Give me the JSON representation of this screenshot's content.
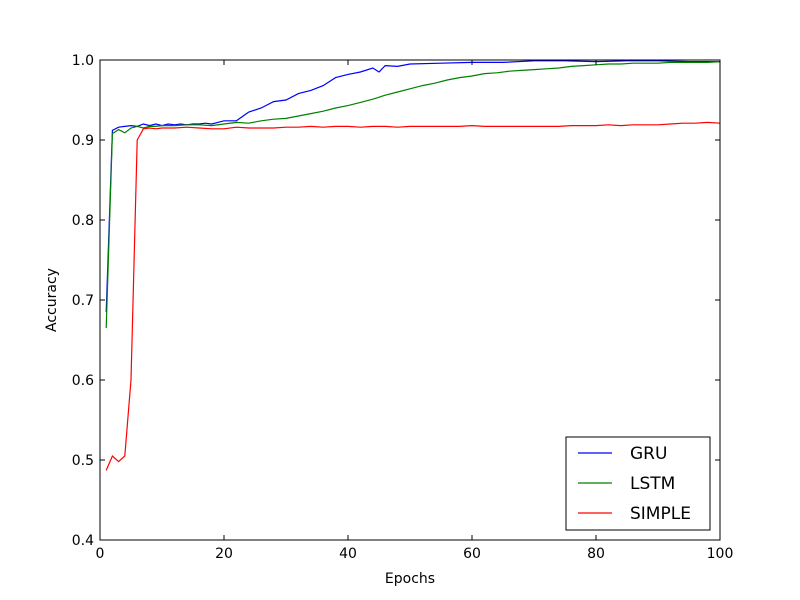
{
  "chart_data": {
    "type": "line",
    "title": "",
    "xlabel": "Epochs",
    "ylabel": "Accuracy",
    "xlim": [
      0,
      100
    ],
    "ylim": [
      0.4,
      1.0
    ],
    "xticks": [
      0,
      20,
      40,
      60,
      80,
      100
    ],
    "yticks": [
      0.4,
      0.5,
      0.6,
      0.7,
      0.8,
      0.9,
      1.0
    ],
    "xtick_labels": [
      "0",
      "20",
      "40",
      "60",
      "80",
      "100"
    ],
    "ytick_labels": [
      "0.4",
      "0.5",
      "0.6",
      "0.7",
      "0.8",
      "0.9",
      "1.0"
    ],
    "grid": false,
    "legend_position": "bottom-right",
    "series": [
      {
        "name": "GRU",
        "color": "#0000ff",
        "x": [
          1,
          2,
          3,
          4,
          5,
          6,
          7,
          8,
          9,
          10,
          11,
          12,
          13,
          14,
          15,
          16,
          17,
          18,
          19,
          20,
          22,
          24,
          26,
          28,
          30,
          32,
          34,
          36,
          38,
          40,
          42,
          44,
          45,
          46,
          48,
          50,
          55,
          60,
          65,
          70,
          75,
          80,
          85,
          90,
          95,
          100
        ],
        "y": [
          0.685,
          0.912,
          0.916,
          0.917,
          0.918,
          0.917,
          0.92,
          0.918,
          0.92,
          0.918,
          0.92,
          0.919,
          0.92,
          0.919,
          0.92,
          0.92,
          0.921,
          0.92,
          0.922,
          0.924,
          0.924,
          0.935,
          0.94,
          0.948,
          0.95,
          0.958,
          0.962,
          0.968,
          0.978,
          0.982,
          0.985,
          0.99,
          0.985,
          0.993,
          0.992,
          0.995,
          0.996,
          0.997,
          0.997,
          0.999,
          0.999,
          0.998,
          0.999,
          0.999,
          0.998,
          0.998
        ]
      },
      {
        "name": "LSTM",
        "color": "#008000",
        "x": [
          1,
          2,
          3,
          4,
          5,
          6,
          7,
          8,
          9,
          10,
          12,
          14,
          16,
          18,
          20,
          22,
          24,
          26,
          28,
          30,
          32,
          34,
          36,
          38,
          40,
          42,
          44,
          46,
          48,
          50,
          52,
          54,
          56,
          58,
          60,
          62,
          64,
          66,
          68,
          70,
          72,
          74,
          76,
          78,
          80,
          82,
          84,
          86,
          88,
          90,
          92,
          94,
          96,
          98,
          100
        ],
        "y": [
          0.665,
          0.908,
          0.913,
          0.909,
          0.915,
          0.917,
          0.915,
          0.917,
          0.917,
          0.918,
          0.918,
          0.919,
          0.919,
          0.918,
          0.92,
          0.922,
          0.921,
          0.924,
          0.926,
          0.927,
          0.93,
          0.933,
          0.936,
          0.94,
          0.943,
          0.947,
          0.951,
          0.956,
          0.96,
          0.964,
          0.968,
          0.971,
          0.975,
          0.978,
          0.98,
          0.983,
          0.984,
          0.986,
          0.987,
          0.988,
          0.989,
          0.99,
          0.992,
          0.993,
          0.994,
          0.995,
          0.995,
          0.996,
          0.996,
          0.996,
          0.997,
          0.997,
          0.997,
          0.997,
          0.998
        ]
      },
      {
        "name": "SIMPLE",
        "color": "#ff0000",
        "x": [
          1,
          2,
          3,
          4,
          5,
          6,
          7,
          8,
          9,
          10,
          12,
          14,
          16,
          18,
          20,
          22,
          24,
          26,
          28,
          30,
          32,
          34,
          36,
          38,
          40,
          42,
          44,
          46,
          48,
          50,
          52,
          54,
          56,
          58,
          60,
          62,
          64,
          66,
          68,
          70,
          72,
          74,
          76,
          78,
          80,
          82,
          84,
          86,
          88,
          90,
          92,
          94,
          96,
          98,
          100
        ],
        "y": [
          0.487,
          0.505,
          0.498,
          0.505,
          0.6,
          0.9,
          0.914,
          0.915,
          0.914,
          0.915,
          0.915,
          0.916,
          0.915,
          0.914,
          0.914,
          0.916,
          0.915,
          0.915,
          0.915,
          0.916,
          0.916,
          0.917,
          0.916,
          0.917,
          0.917,
          0.916,
          0.917,
          0.917,
          0.916,
          0.917,
          0.917,
          0.917,
          0.917,
          0.917,
          0.918,
          0.917,
          0.917,
          0.917,
          0.917,
          0.917,
          0.917,
          0.917,
          0.918,
          0.918,
          0.918,
          0.919,
          0.918,
          0.919,
          0.919,
          0.919,
          0.92,
          0.921,
          0.921,
          0.922,
          0.921
        ]
      }
    ]
  }
}
